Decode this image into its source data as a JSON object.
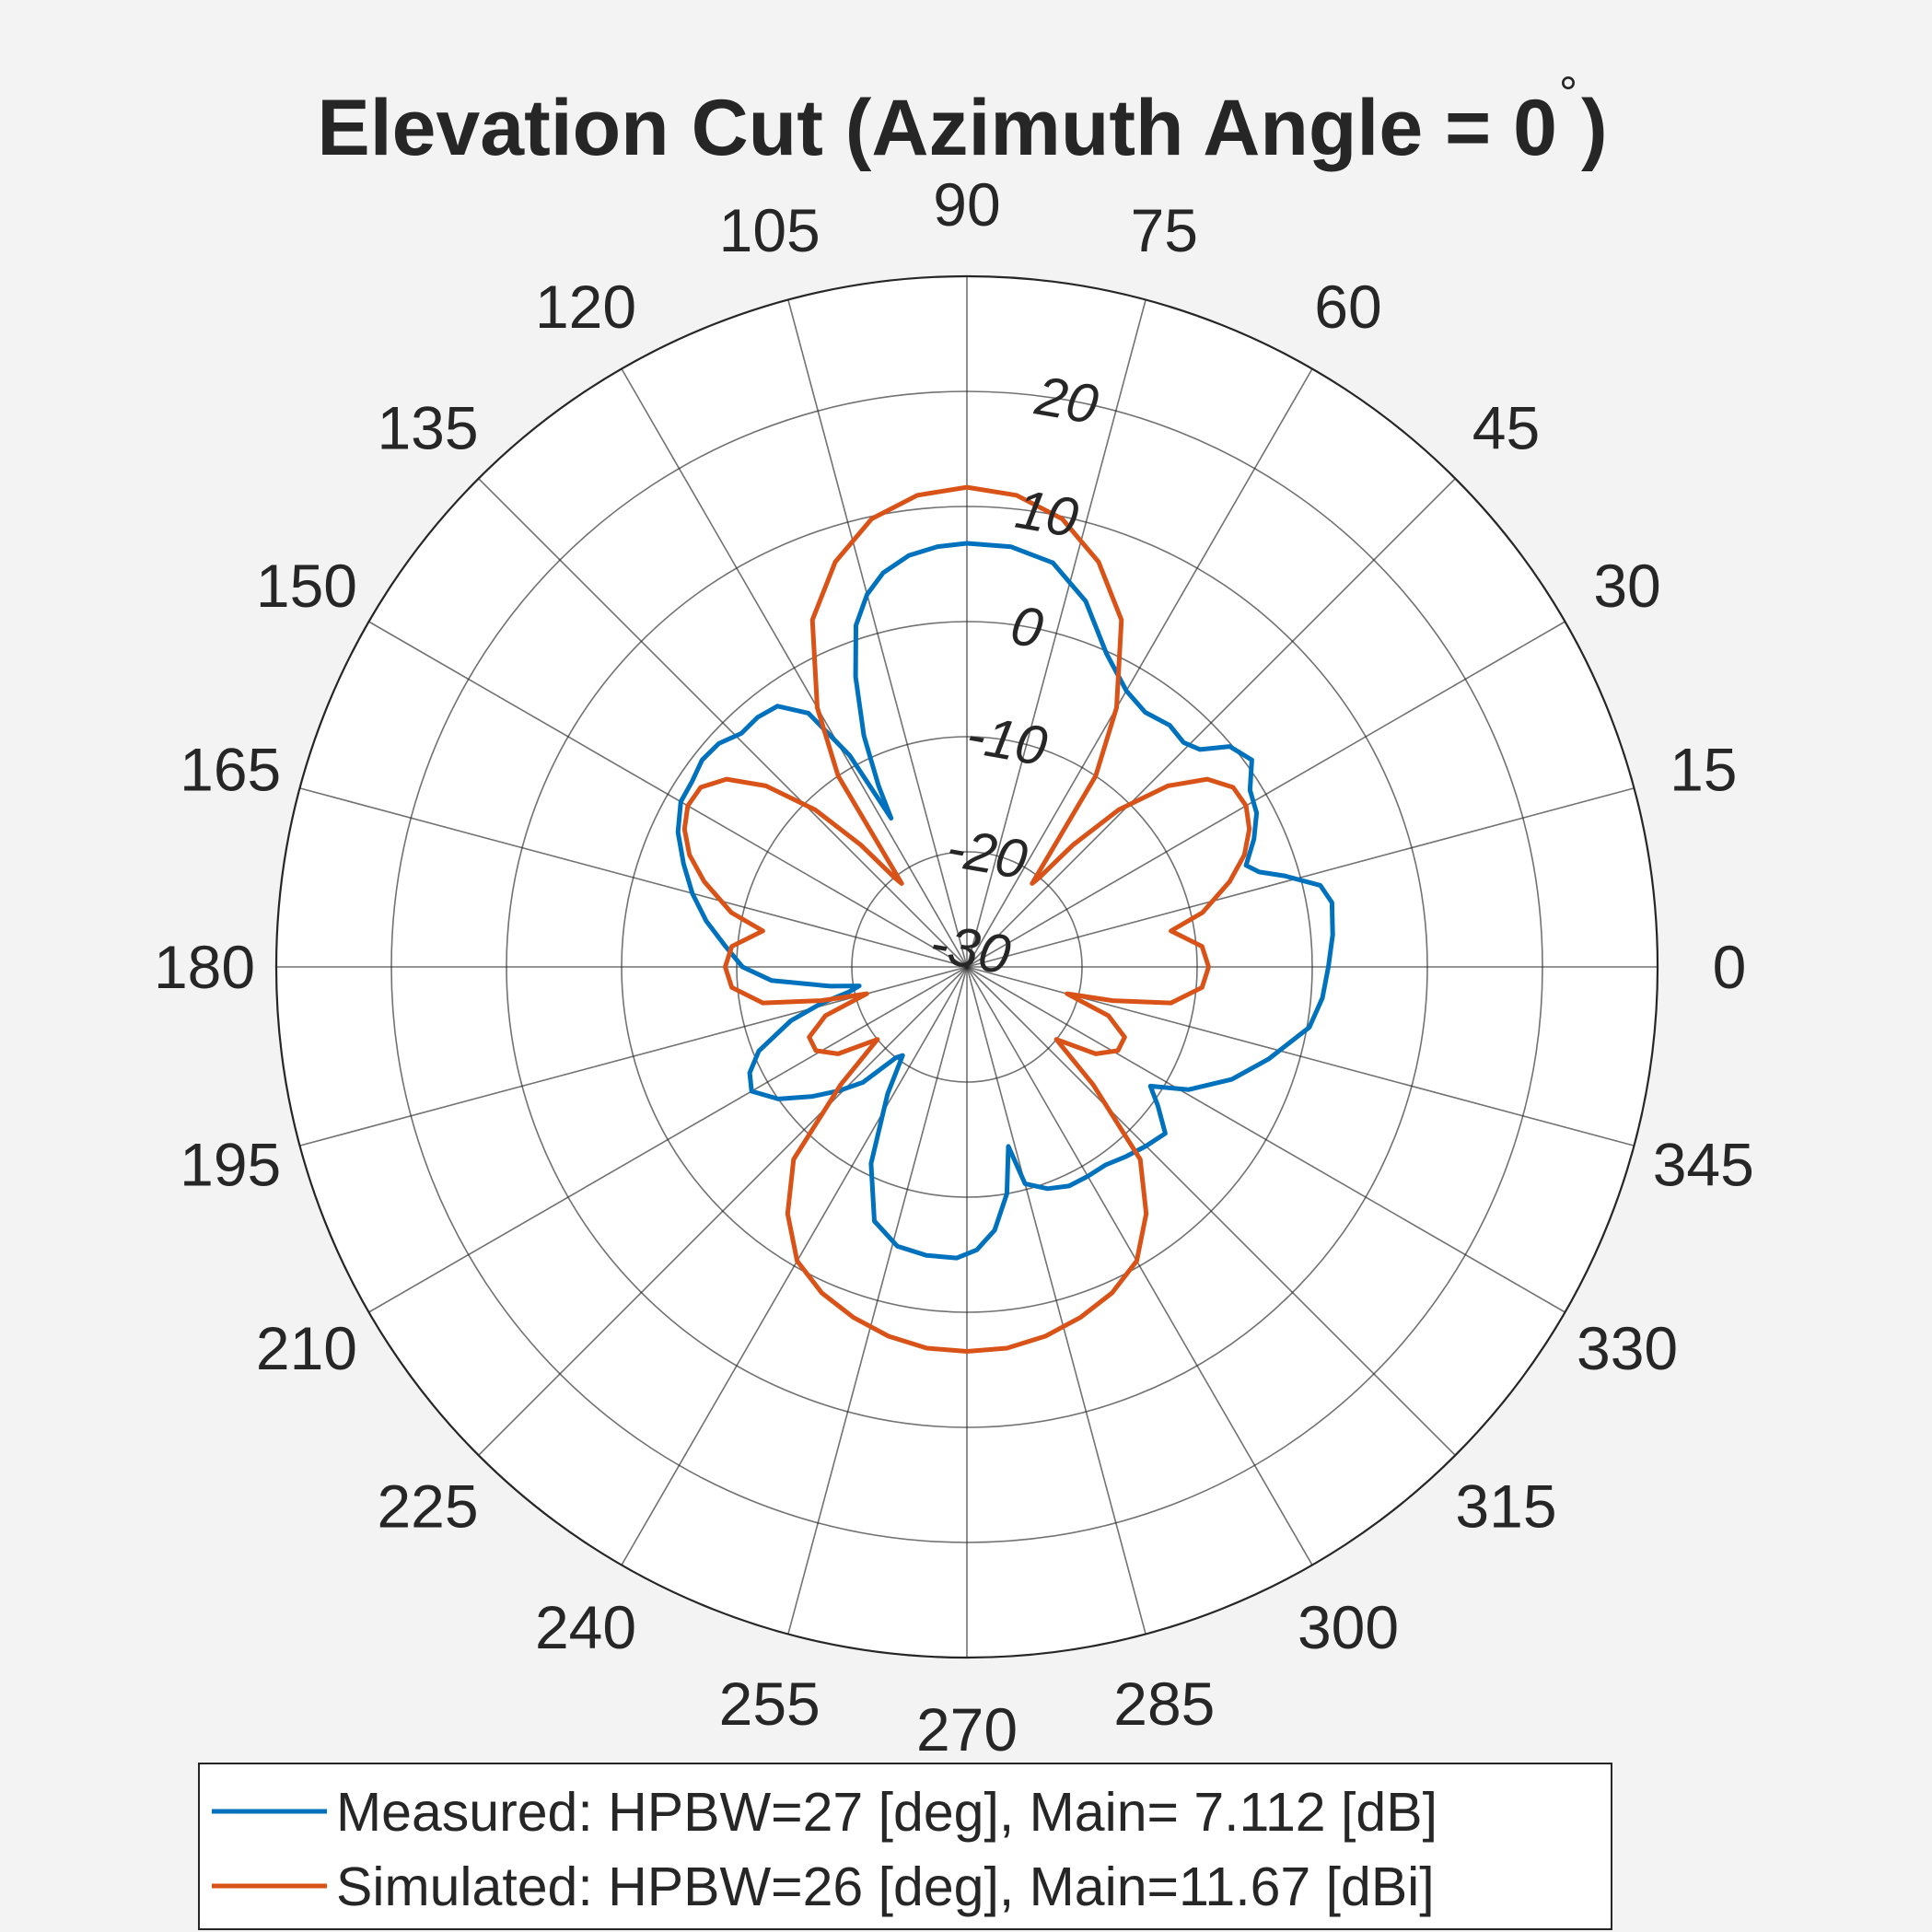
{
  "chart_data": {
    "type": "polar-line",
    "title": "Elevation Cut (Azimuth Angle = 0",
    "title_degree_symbol": "°",
    "title_close": ")",
    "theta_unit": "deg",
    "theta_ticks": [
      0,
      15,
      30,
      45,
      60,
      75,
      90,
      105,
      120,
      135,
      150,
      165,
      180,
      195,
      210,
      225,
      240,
      255,
      270,
      285,
      300,
      315,
      330,
      345
    ],
    "theta_tick_labels": [
      "0",
      "15",
      "30",
      "45",
      "60",
      "75",
      "90",
      "105",
      "120",
      "135",
      "150",
      "165",
      "180",
      "195",
      "210",
      "225",
      "240",
      "255",
      "270",
      "285",
      "300",
      "315",
      "330",
      "345"
    ],
    "r_ticks": [
      -30,
      -20,
      -10,
      0,
      10,
      20
    ],
    "r_tick_labels": [
      "-30",
      "-20",
      "-10",
      "0",
      "10",
      "20"
    ],
    "r_lim": [
      -30,
      30
    ],
    "r_label_angle_deg": 80,
    "grid": true,
    "legend_position": "bottom",
    "series": [
      {
        "name": "Measured: HPBW=27 [deg], Main= 7.112 [dB]",
        "color": "#0072BD",
        "points": [
          [
            0,
            1.4
          ],
          [
            5,
            1.9
          ],
          [
            10,
            2.2
          ],
          [
            13,
            1.5
          ],
          [
            16,
            -1.3
          ],
          [
            18,
            -3.3
          ],
          [
            20,
            -4.2
          ],
          [
            24,
            -2.7
          ],
          [
            28,
            -1.5
          ],
          [
            32,
            -1.0
          ],
          [
            36,
            0.6
          ],
          [
            40,
            -0.2
          ],
          [
            43,
            -2.3
          ],
          [
            46,
            -2.9
          ],
          [
            50,
            -2.6
          ],
          [
            55,
            -3.0
          ],
          [
            60,
            -2.3
          ],
          [
            66,
            -0.2
          ],
          [
            72,
            3.4
          ],
          [
            78,
            5.9
          ],
          [
            84,
            6.7
          ],
          [
            90,
            6.8
          ],
          [
            94,
            6.6
          ],
          [
            98,
            6.1
          ],
          [
            102,
            5.0
          ],
          [
            105,
            3.5
          ],
          [
            108,
            1.2
          ],
          [
            111,
            -3.0
          ],
          [
            114,
            -8.0
          ],
          [
            116,
            -12.5
          ],
          [
            117,
            -15.5
          ],
          [
            119,
            -9.0
          ],
          [
            122,
            -4.0
          ],
          [
            126,
            -2.0
          ],
          [
            130,
            -1.7
          ],
          [
            134,
            -1.8
          ],
          [
            138,
            -1.0
          ],
          [
            142,
            -0.8
          ],
          [
            146,
            -1.2
          ],
          [
            150,
            -1.3
          ],
          [
            155,
            -2.3
          ],
          [
            160,
            -3.8
          ],
          [
            165,
            -5.3
          ],
          [
            170,
            -7.0
          ],
          [
            175,
            -8.9
          ],
          [
            180,
            -10.5
          ],
          [
            184,
            -13.0
          ],
          [
            188,
            -18.0
          ],
          [
            190,
            -20.5
          ],
          [
            192,
            -19.5
          ],
          [
            194,
            -17.0
          ],
          [
            197,
            -14.0
          ],
          [
            202,
            -10.5
          ],
          [
            206,
            -9.0
          ],
          [
            210,
            -8.4
          ],
          [
            215,
            -10.0
          ],
          [
            220,
            -12.5
          ],
          [
            224,
            -14.5
          ],
          [
            228,
            -16.5
          ],
          [
            232,
            -20.0
          ],
          [
            234,
            -20.5
          ],
          [
            238,
            -17.0
          ],
          [
            244,
            -11.0
          ],
          [
            250,
            -6.5
          ],
          [
            256,
            -5.0
          ],
          [
            262,
            -4.7
          ],
          [
            268,
            -4.7
          ],
          [
            272,
            -5.4
          ],
          [
            276,
            -7.0
          ],
          [
            280,
            -10.0
          ],
          [
            283,
            -14.0
          ],
          [
            285,
            -10.5
          ],
          [
            290,
            -9.5
          ],
          [
            295,
            -9.0
          ],
          [
            300,
            -9.0
          ],
          [
            305,
            -9.0
          ],
          [
            310,
            -8.5
          ],
          [
            315,
            -8.0
          ],
          [
            320,
            -7.5
          ],
          [
            324,
            -9.5
          ],
          [
            327,
            -11.0
          ],
          [
            331,
            -8.0
          ],
          [
            337,
            -5.0
          ],
          [
            343,
            -2.6
          ],
          [
            350,
            0.2
          ],
          [
            355,
            1.0
          ],
          [
            360,
            1.4
          ]
        ]
      },
      {
        "name": "Simulated: HPBW=26 [deg], Main=11.67 [dBi]",
        "color": "#D95319",
        "points": [
          [
            0,
            -9.0
          ],
          [
            5,
            -9.5
          ],
          [
            10,
            -12.0
          ],
          [
            13,
            -9.0
          ],
          [
            18,
            -6.0
          ],
          [
            22,
            -4.0
          ],
          [
            26,
            -2.7
          ],
          [
            30,
            -2.0
          ],
          [
            34,
            -2.1
          ],
          [
            38,
            -3.5
          ],
          [
            42,
            -6.5
          ],
          [
            46,
            -11.0
          ],
          [
            49,
            -16.0
          ],
          [
            51,
            -20.0
          ],
          [
            52,
            -20.8
          ],
          [
            56,
            -10.0
          ],
          [
            60,
            -4.0
          ],
          [
            66,
            3.0
          ],
          [
            72,
            7.0
          ],
          [
            78,
            9.8
          ],
          [
            84,
            11.2
          ],
          [
            90,
            11.67
          ],
          [
            96,
            11.2
          ],
          [
            102,
            9.8
          ],
          [
            108,
            7.0
          ],
          [
            114,
            3.0
          ],
          [
            120,
            -4.0
          ],
          [
            124,
            -10.0
          ],
          [
            128,
            -20.8
          ],
          [
            129,
            -20.0
          ],
          [
            131,
            -16.0
          ],
          [
            134,
            -11.0
          ],
          [
            138,
            -6.5
          ],
          [
            142,
            -3.5
          ],
          [
            146,
            -2.1
          ],
          [
            150,
            -2.0
          ],
          [
            154,
            -2.7
          ],
          [
            158,
            -4.0
          ],
          [
            162,
            -6.0
          ],
          [
            167,
            -9.0
          ],
          [
            170,
            -12.0
          ],
          [
            175,
            -9.5
          ],
          [
            180,
            -9.0
          ],
          [
            185,
            -9.5
          ],
          [
            190,
            -12.0
          ],
          [
            193,
            -17.0
          ],
          [
            195,
            -21.0
          ],
          [
            199,
            -17.0
          ],
          [
            204,
            -15.0
          ],
          [
            209,
            -15.0
          ],
          [
            214,
            -16.5
          ],
          [
            219,
            -20.0
          ],
          [
            223,
            -15.0
          ],
          [
            228,
            -7.5
          ],
          [
            234,
            -3.5
          ],
          [
            240,
            -0.5
          ],
          [
            246,
            1.0
          ],
          [
            252,
            2.0
          ],
          [
            258,
            2.8
          ],
          [
            264,
            3.3
          ],
          [
            270,
            3.4
          ],
          [
            276,
            3.3
          ],
          [
            282,
            2.8
          ],
          [
            288,
            2.0
          ],
          [
            294,
            1.0
          ],
          [
            300,
            -0.5
          ],
          [
            306,
            -3.5
          ],
          [
            312,
            -7.5
          ],
          [
            317,
            -15.0
          ],
          [
            321,
            -20.0
          ],
          [
            326,
            -16.5
          ],
          [
            331,
            -15.0
          ],
          [
            336,
            -15.0
          ],
          [
            341,
            -17.0
          ],
          [
            345,
            -21.0
          ],
          [
            347,
            -17.0
          ],
          [
            350,
            -12.0
          ],
          [
            355,
            -9.5
          ],
          [
            360,
            -9.0
          ]
        ]
      }
    ]
  }
}
